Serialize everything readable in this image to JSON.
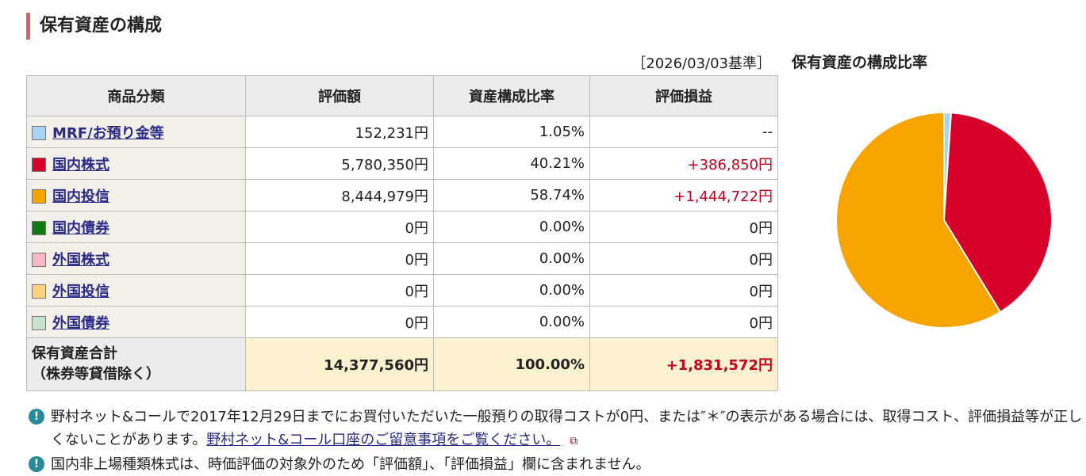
{
  "header": {
    "title": "保有資産の構成"
  },
  "date": "［2026/03/03基準］",
  "table": {
    "headers": [
      "商品分類",
      "評価額",
      "資産構成比率",
      "評価損益"
    ],
    "rows": [
      [
        "MRF/お預り金等",
        "152,231円",
        "1.05%",
        "--"
      ],
      [
        "国内株式",
        "5,780,350円",
        "40.21%",
        "+386,850円"
      ],
      [
        "国内投信",
        "8,444,979円",
        "58.74%",
        "+1,444,722円"
      ],
      [
        "国内債券",
        "0円",
        "0.00%",
        "0円"
      ],
      [
        "外国株式",
        "0円",
        "0.00%",
        "0円"
      ],
      [
        "外国投信",
        "0円",
        "0.00%",
        "0円"
      ],
      [
        "外国債券",
        "0円",
        "0.00%",
        "0円"
      ]
    ],
    "total": {
      "label": [
        "保有資産合計",
        "（株券等貸借除く）"
      ],
      "cells": [
        "14,377,560円",
        "100.00%",
        "+1,831,572円"
      ]
    }
  },
  "notes": [
    {
      "text": "野村ネット&コールで2017年12月29日までにお買付いただいた一般預りの取得コストが0円、または″＊″の表示がある場合には、取得コスト、評価損益等が正しくないことがあります。",
      "link": "野村ネット&コール口座のご留意事項をご覧ください。"
    },
    {
      "text": "国内非上場種類株式は、時価評価の対象外のため「評価額」、「評価損益」欄に含まれません。"
    }
  ],
  "chart_data": {
    "type": "pie",
    "title": "保有資産の構成比率",
    "values": [
      1.05,
      40.21,
      58.74,
      0,
      0,
      0,
      0
    ],
    "colors": [
      "#a9d3f5",
      "#d6002a",
      "#f8a400",
      "#0f7a12",
      "#f6b8c4",
      "#fdd27e",
      "#c8e3cd"
    ]
  }
}
